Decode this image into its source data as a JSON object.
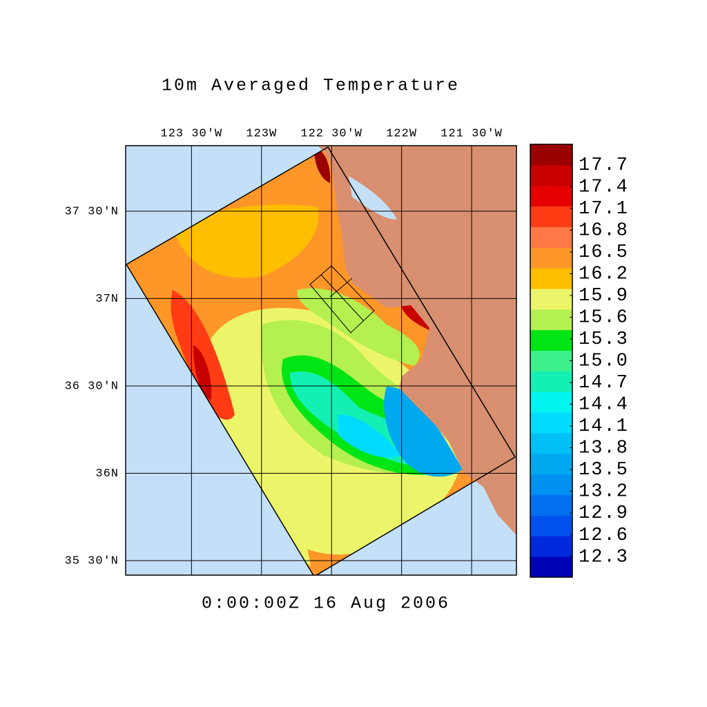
{
  "chart_data": {
    "type": "contour-map",
    "title": "10m Averaged Temperature",
    "subtitle": "0:00:00Z  16 Aug 2006",
    "xlim": [
      -123.97,
      -121.18
    ],
    "ylim": [
      35.417,
      37.875
    ],
    "xticks": [
      {
        "value": -123.5,
        "label": "123 30'W"
      },
      {
        "value": -123,
        "label": "123W"
      },
      {
        "value": -122.5,
        "label": "122 30'W"
      },
      {
        "value": -122,
        "label": "122W"
      },
      {
        "value": -121.5,
        "label": "121 30'W"
      }
    ],
    "yticks": [
      {
        "value": 35.5,
        "label": "35 30'N"
      },
      {
        "value": 36,
        "label": "36N"
      },
      {
        "value": 36.5,
        "label": "36 30'N"
      },
      {
        "value": 37,
        "label": "37N"
      },
      {
        "value": 37.5,
        "label": "37 30'N"
      }
    ],
    "grid": true,
    "colorbar": {
      "ticks": [
        12.3,
        12.6,
        12.9,
        13.2,
        13.5,
        13.8,
        14.1,
        14.4,
        14.7,
        {
          "value": 15,
          "label": "15.0"
        },
        15.3,
        15.6,
        15.9,
        16.2,
        16.5,
        16.8,
        17.1,
        17.4,
        17.7
      ],
      "colors": [
        "#0000b4",
        "#0028dc",
        "#0050f0",
        "#0070f0",
        "#0090f0",
        "#00a8f0",
        "#00c0f5",
        "#00dcff",
        "#00f5f0",
        "#14f0b4",
        "#3cf08c",
        "#00e614",
        "#b4f050",
        "#ecf56a",
        "#ffbe00",
        "#ff9628",
        "#ff7846",
        "#ff3c14",
        "#e60000",
        "#c80000",
        "#9b0000"
      ]
    }
  }
}
